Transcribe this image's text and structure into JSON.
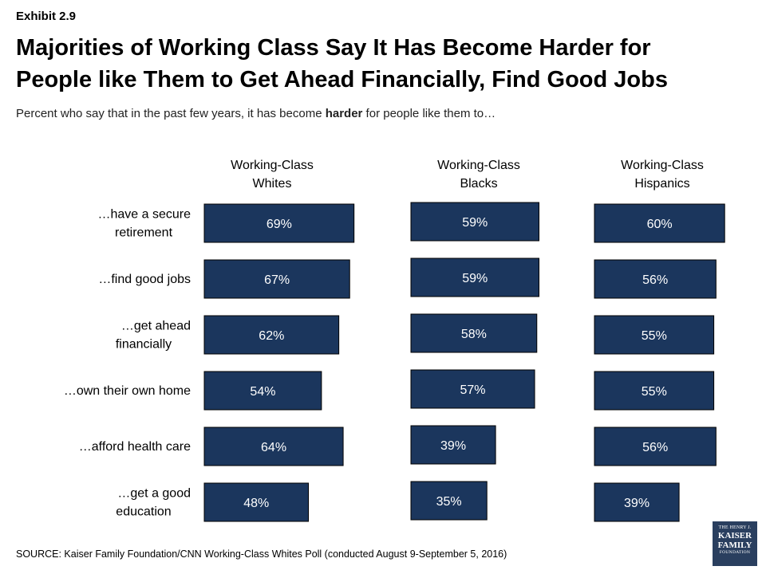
{
  "header": {
    "exhibit": "Exhibit 2.9",
    "title_line1": "Majorities of Working Class Say It Has Become Harder for",
    "title_line2": "People like Them to Get Ahead Financially, Find Good Jobs",
    "subtitle_pre": "Percent who say that in the past few years, it has become ",
    "subtitle_bold": "harder",
    "subtitle_post": " for people like them to…"
  },
  "footer": {
    "source": "SOURCE: Kaiser Family Foundation/CNN Working-Class Whites Poll (conducted August 9-September 5, 2016)"
  },
  "logo": {
    "line1": "THE HENRY J.",
    "line2": "KAISER",
    "line3": "FAMILY",
    "line4": "FOUNDATION"
  },
  "chart_data": {
    "type": "bar",
    "orientation": "horizontal",
    "bar_color": "#1b365d",
    "label_color": "#ffffff",
    "value_suffix": "%",
    "categories": [
      "…have a secure retirement",
      "…find good jobs",
      "…get ahead financially",
      "…own their own home",
      "…afford health care",
      "…get a good education"
    ],
    "series": [
      {
        "name": "Working-Class Whites",
        "values": [
          69,
          67,
          62,
          54,
          64,
          48
        ]
      },
      {
        "name": "Working-Class Blacks",
        "values": [
          59,
          59,
          58,
          57,
          39,
          35
        ]
      },
      {
        "name": "Working-Class Hispanics",
        "values": [
          60,
          56,
          55,
          55,
          56,
          39
        ]
      }
    ],
    "xlim": [
      0,
      100
    ],
    "grid": false,
    "legend": "column headers above each panel"
  }
}
